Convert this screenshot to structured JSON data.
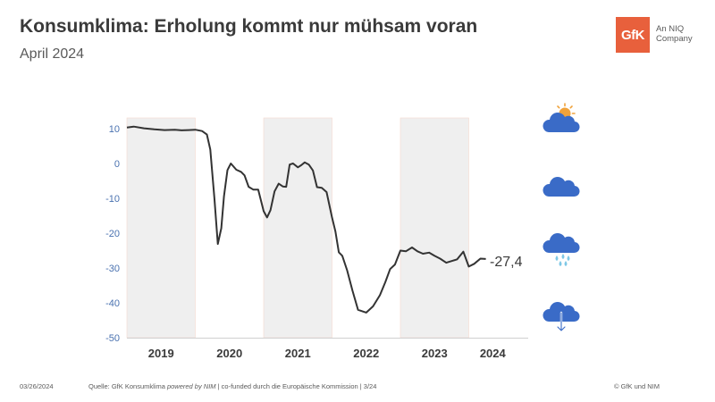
{
  "header": {
    "title": "Konsumklima: Erholung kommt nur mühsam voran",
    "subtitle": "April 2024"
  },
  "logo": {
    "mark": "GfK",
    "tagline_line1": "An NIQ",
    "tagline_line2": "Company",
    "color": "#e8603c"
  },
  "footer": {
    "date": "03/26/2024",
    "source_prefix": "Quelle: GfK Konsumklima ",
    "source_italic": "powered by NIM",
    "source_suffix": " | co-funded durch die Europäische Kommission | 3/24",
    "copyright": "© GfK und NIM"
  },
  "legend_icons": [
    {
      "name": "sun-cloud-icon"
    },
    {
      "name": "cloud-icon"
    },
    {
      "name": "rain-cloud-icon"
    },
    {
      "name": "storm-cloud-icon"
    }
  ],
  "chart_data": {
    "type": "line",
    "title": "",
    "xlabel": "",
    "ylabel": "",
    "ylim": [
      -50,
      10
    ],
    "yticks": [
      10,
      0,
      -10,
      -20,
      -30,
      -40,
      -50
    ],
    "xlim": [
      2019.0,
      2024.6
    ],
    "year_labels": [
      {
        "label": "2019",
        "x": 2019.5
      },
      {
        "label": "2020",
        "x": 2020.5
      },
      {
        "label": "2021",
        "x": 2021.5
      },
      {
        "label": "2022",
        "x": 2022.5
      },
      {
        "label": "2023",
        "x": 2023.5
      },
      {
        "label": "2024",
        "x": 2024.35
      }
    ],
    "shaded_years": [
      [
        2019.0,
        2020.0
      ],
      [
        2021.0,
        2022.0
      ],
      [
        2023.0,
        2024.0
      ]
    ],
    "line_color": "#333333",
    "tick_color": "#4a72b0",
    "last_value_label": "-27,4",
    "series": [
      {
        "x": [
          2019.0,
          2019.1,
          2019.25,
          2019.4,
          2019.55,
          2019.7,
          2019.8,
          2019.9,
          2020.0,
          2020.1,
          2020.17,
          2020.22,
          2020.28,
          2020.33,
          2020.38,
          2020.42,
          2020.47,
          2020.52,
          2020.6,
          2020.67,
          2020.72,
          2020.78,
          2020.85,
          2020.92,
          2021.0,
          2021.05,
          2021.1,
          2021.16,
          2021.22,
          2021.28,
          2021.33,
          2021.38,
          2021.43,
          2021.5,
          2021.55,
          2021.6,
          2021.66,
          2021.72,
          2021.78,
          2021.85,
          2021.92,
          2022.0,
          2022.05,
          2022.1,
          2022.15,
          2022.22,
          2022.3,
          2022.38,
          2022.5,
          2022.6,
          2022.7,
          2022.78,
          2022.85,
          2022.92,
          2023.0,
          2023.08,
          2023.17,
          2023.25,
          2023.33,
          2023.42,
          2023.5,
          2023.58,
          2023.67,
          2023.75,
          2023.83,
          2023.92,
          2024.0,
          2024.08,
          2024.17,
          2024.25
        ],
        "y": [
          10.3,
          10.6,
          10.1,
          9.8,
          9.6,
          9.7,
          9.5,
          9.6,
          9.7,
          9.3,
          8.3,
          4.0,
          -10.0,
          -23.1,
          -18.6,
          -9.4,
          -1.9,
          0.0,
          -1.8,
          -2.4,
          -3.4,
          -6.7,
          -7.5,
          -7.5,
          -13.7,
          -15.5,
          -13.4,
          -8.0,
          -5.8,
          -6.6,
          -6.7,
          -0.3,
          0.0,
          -1.1,
          -0.5,
          0.3,
          -0.3,
          -2.0,
          -6.8,
          -7.0,
          -8.2,
          -15.5,
          -19.5,
          -25.5,
          -26.5,
          -30.6,
          -36.5,
          -42.0,
          -42.8,
          -41.0,
          -37.8,
          -34.0,
          -30.3,
          -29.0,
          -25.0,
          -25.2,
          -24.1,
          -25.2,
          -25.9,
          -25.6,
          -26.5,
          -27.3,
          -28.5,
          -28.0,
          -27.5,
          -25.3,
          -29.6,
          -28.8,
          -27.3,
          -27.4
        ]
      }
    ]
  }
}
